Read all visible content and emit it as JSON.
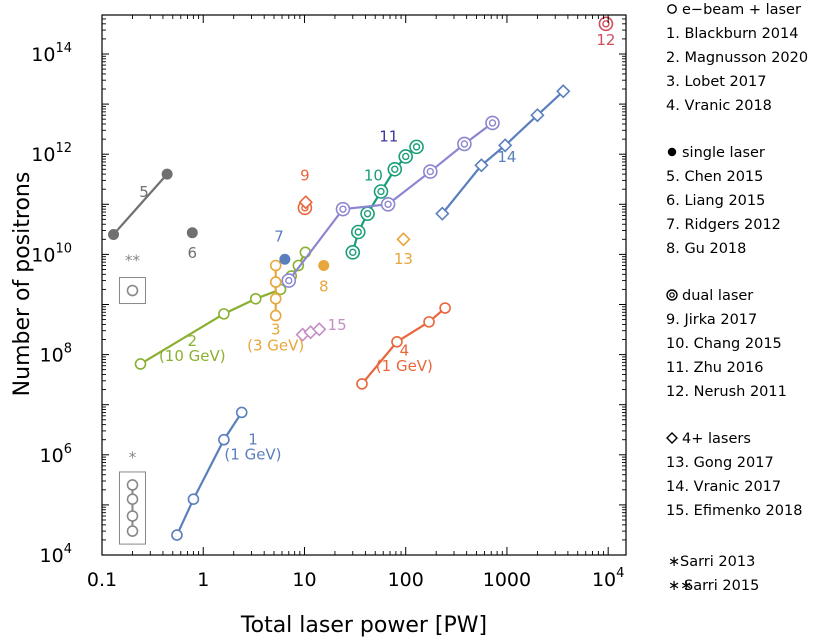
{
  "chart_data": {
    "type": "scatter",
    "xlabel": "Total laser power [PW]",
    "ylabel": "Number of positrons",
    "xscale": "log",
    "yscale": "log",
    "xlim": [
      0.1,
      15000
    ],
    "ylim": [
      10000,
      600000000000000
    ],
    "x_ticks": [
      {
        "value": 0.1,
        "label": "0.1"
      },
      {
        "value": 1,
        "label": "1"
      },
      {
        "value": 10,
        "label": "10"
      },
      {
        "value": 100,
        "label": "100"
      },
      {
        "value": 1000,
        "label": "1000"
      },
      {
        "value": 10000,
        "label": "10",
        "exp": "4"
      }
    ],
    "y_ticks": [
      {
        "value": 10000,
        "label": "10",
        "exp": "4"
      },
      {
        "value": 1000000,
        "label": "10",
        "exp": "6"
      },
      {
        "value": 100000000,
        "label": "10",
        "exp": "8"
      },
      {
        "value": 10000000000,
        "label": "10",
        "exp": "10"
      },
      {
        "value": 1000000000000,
        "label": "10",
        "exp": "12"
      },
      {
        "value": 100000000000000,
        "label": "10",
        "exp": "14"
      }
    ],
    "series": [
      {
        "id": "1",
        "color": "#5a7fbd",
        "marker": "open-circle",
        "line": true,
        "points": [
          [
            0.55,
            25000
          ],
          [
            0.8,
            130000
          ],
          [
            1.6,
            2000000
          ],
          [
            2.4,
            7000000
          ]
        ]
      },
      {
        "id": "2",
        "color": "#8bb031",
        "marker": "open-circle",
        "line": true,
        "points": [
          [
            0.24,
            65000000
          ],
          [
            1.6,
            650000000
          ],
          [
            3.3,
            1300000000
          ],
          [
            5.8,
            2000000000
          ],
          [
            7.4,
            3700000000
          ],
          [
            8.7,
            6000000000
          ],
          [
            10.2,
            11000000000
          ]
        ]
      },
      {
        "id": "3",
        "color": "#e8a63b",
        "marker": "open-circle",
        "line": true,
        "points": [
          [
            5.2,
            600000000
          ],
          [
            5.2,
            1300000000
          ],
          [
            5.2,
            2800000000
          ],
          [
            5.2,
            6000000000
          ]
        ]
      },
      {
        "id": "4",
        "color": "#e9663c",
        "marker": "open-circle",
        "line": true,
        "points": [
          [
            37,
            26000000
          ],
          [
            82,
            180000000
          ],
          [
            170,
            450000000
          ],
          [
            245,
            850000000
          ]
        ]
      },
      {
        "id": "5",
        "color": "#707070",
        "marker": "filled-circle",
        "line": true,
        "points": [
          [
            0.13,
            25000000000
          ],
          [
            0.44,
            400000000000
          ]
        ]
      },
      {
        "id": "6",
        "color": "#707070",
        "marker": "filled-circle",
        "line": false,
        "points": [
          [
            0.78,
            27000000000
          ]
        ]
      },
      {
        "id": "7",
        "color": "#5a7fbd",
        "marker": "filled-circle",
        "line": false,
        "points": [
          [
            6.4,
            8000000000
          ]
        ]
      },
      {
        "id": "8",
        "color": "#e8a63b",
        "marker": "filled-circle",
        "line": false,
        "points": [
          [
            15.5,
            6000000000
          ]
        ]
      },
      {
        "id": "9",
        "color": "#e9663c",
        "marker": "double-circle",
        "line": false,
        "points": [
          [
            10.1,
            85000000000
          ]
        ]
      },
      {
        "id": "9b",
        "color": "#e9663c",
        "marker": "open-diamond",
        "line": false,
        "points": [
          [
            10.3,
            110000000000
          ]
        ]
      },
      {
        "id": "10",
        "color": "#1a9e7a",
        "marker": "double-circle",
        "line": true,
        "points": [
          [
            30,
            11000000000
          ],
          [
            34,
            28000000000
          ],
          [
            42,
            65000000000
          ],
          [
            57,
            180000000000
          ],
          [
            78,
            500000000000
          ],
          [
            100,
            900000000000
          ],
          [
            128,
            1400000000000
          ]
        ]
      },
      {
        "id": "11",
        "color": "#8c86d2",
        "marker": "double-circle",
        "line": true,
        "points": [
          [
            7,
            3000000000
          ],
          [
            24,
            80000000000
          ],
          [
            67,
            100000000000
          ],
          [
            175,
            450000000000
          ],
          [
            380,
            1600000000000
          ],
          [
            720,
            4200000000000
          ]
        ]
      },
      {
        "id": "12",
        "color": "#d34d5c",
        "marker": "double-circle",
        "line": false,
        "points": [
          [
            9500,
            400000000000000
          ]
        ]
      },
      {
        "id": "13",
        "color": "#e8a63b",
        "marker": "open-diamond",
        "line": false,
        "points": [
          [
            95,
            20000000000
          ]
        ]
      },
      {
        "id": "14",
        "color": "#5a7fbd",
        "marker": "open-diamond",
        "line": true,
        "points": [
          [
            230,
            65000000000
          ],
          [
            560,
            600000000000
          ],
          [
            960,
            1500000000000
          ],
          [
            2000,
            6000000000000
          ],
          [
            3600,
            18000000000000
          ]
        ]
      },
      {
        "id": "15",
        "color": "#c48ec4",
        "marker": "open-diamond",
        "line": true,
        "points": [
          [
            9.6,
            250000000
          ],
          [
            11.5,
            280000000
          ],
          [
            14,
            320000000
          ]
        ]
      }
    ],
    "inset_markers": [
      {
        "id": "sarri2015",
        "color": "#888888",
        "marker": "open-circle",
        "symbol": "**",
        "line": false,
        "points": [
          [
            0.2,
            1900000000
          ]
        ]
      },
      {
        "id": "sarri2013",
        "color": "#888888",
        "marker": "open-circle",
        "symbol": "*",
        "line": true,
        "points": [
          [
            0.2,
            30000
          ],
          [
            0.2,
            60000
          ],
          [
            0.2,
            130000
          ],
          [
            0.2,
            250000
          ]
        ]
      }
    ],
    "annotations": [
      {
        "text": "1",
        "color": "#5a7fbd",
        "x": 3.1,
        "y": 1600000
      },
      {
        "text": "(1 GeV)",
        "color": "#5a7fbd",
        "x": 3.1,
        "y": 800000
      },
      {
        "text": "2",
        "color": "#8bb031",
        "x": 0.78,
        "y": 150000000
      },
      {
        "text": "(10 GeV)",
        "color": "#8bb031",
        "x": 0.78,
        "y": 75000000
      },
      {
        "text": "3",
        "color": "#e8a63b",
        "x": 5.2,
        "y": 250000000
      },
      {
        "text": "(3 GeV)",
        "color": "#e8a63b",
        "x": 5.2,
        "y": 120000000
      },
      {
        "text": "4",
        "color": "#e9663c",
        "x": 97,
        "y": 95000000
      },
      {
        "text": "(1 GeV)",
        "color": "#e9663c",
        "x": 97,
        "y": 47000000
      },
      {
        "text": "5",
        "color": "#707070",
        "x": 0.26,
        "y": 140000000000
      },
      {
        "text": "6",
        "color": "#707070",
        "x": 0.78,
        "y": 8500000000
      },
      {
        "text": "7",
        "color": "#5a7fbd",
        "x": 5.6,
        "y": 18000000000
      },
      {
        "text": "8",
        "color": "#e8a63b",
        "x": 15.5,
        "y": 1800000000
      },
      {
        "text": "9",
        "color": "#e9663c",
        "x": 10.1,
        "y": 300000000000
      },
      {
        "text": "10",
        "color": "#1a9e7a",
        "x": 48,
        "y": 300000000000
      },
      {
        "text": "11",
        "color": "#3e37a3",
        "x": 68,
        "y": 1800000000000
      },
      {
        "text": "12",
        "color": "#d34d5c",
        "x": 9500,
        "y": 150000000000000
      },
      {
        "text": "13",
        "color": "#e8a63b",
        "x": 95,
        "y": 6500000000
      },
      {
        "text": "14",
        "color": "#5a7fbd",
        "x": 1000,
        "y": 700000000000
      },
      {
        "text": "15",
        "color": "#c48ec4",
        "x": 21,
        "y": 310000000
      },
      {
        "text": "**",
        "color": "#888888",
        "x": 0.2,
        "y": 6000000000
      },
      {
        "text": "*",
        "color": "#888888",
        "x": 0.2,
        "y": 700000
      }
    ],
    "legend": {
      "placement": "right",
      "groups": [
        {
          "marker": "open-circle",
          "title": "e−beam + laser",
          "items": [
            "1. Blackburn 2014",
            "2. Magnusson 2020",
            "3. Lobet 2017",
            "4. Vranic 2018"
          ]
        },
        {
          "marker": "filled-circle",
          "title": "single laser",
          "items": [
            "5. Chen 2015",
            "6. Liang 2015",
            "7. Ridgers 2012",
            "8. Gu 2018"
          ]
        },
        {
          "marker": "double-circle",
          "title": "dual laser",
          "items": [
            "9. Jirka 2017",
            "10. Chang 2015",
            "11. Zhu 2016",
            "12. Nerush 2011"
          ]
        },
        {
          "marker": "open-diamond",
          "title": "4+ lasers",
          "items": [
            "13. Gong 2017",
            "14. Vranic 2017",
            "15. Efimenko 2018"
          ]
        }
      ],
      "footnotes": [
        {
          "symbol": "∗",
          "text": "Sarri 2013"
        },
        {
          "symbol": "∗∗",
          "text": "Sarri 2015"
        }
      ]
    }
  }
}
